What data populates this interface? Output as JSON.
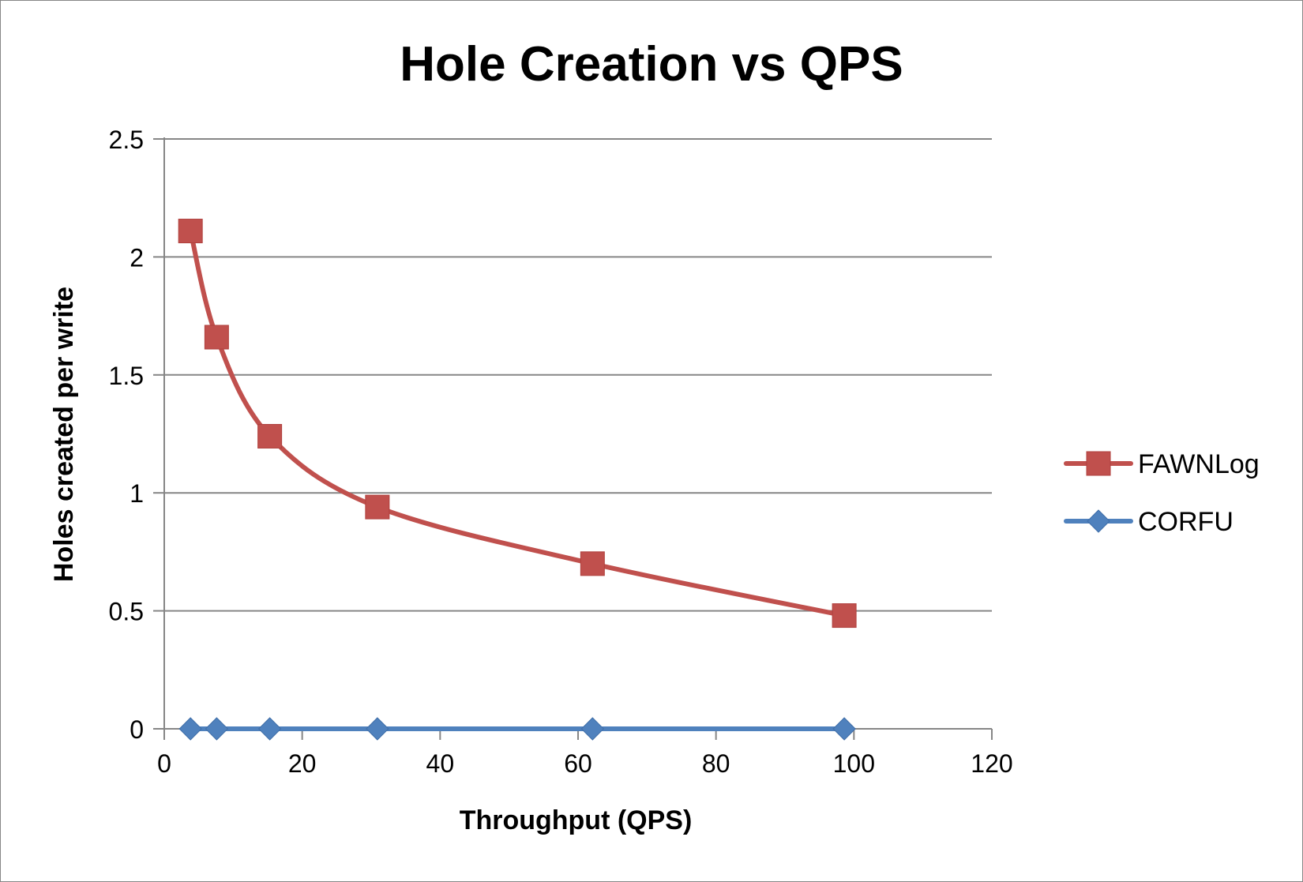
{
  "chart_data": {
    "type": "line",
    "title": "Hole Creation vs QPS",
    "xlabel": "Throughput (QPS)",
    "ylabel": "Holes created per write",
    "xlim": [
      0,
      120
    ],
    "ylim": [
      0,
      2.5
    ],
    "x_ticks": [
      "0",
      "20",
      "40",
      "60",
      "80",
      "100",
      "120"
    ],
    "y_ticks": [
      "0",
      "0.5",
      "1",
      "1.5",
      "2",
      "2.5"
    ],
    "grid": true,
    "legend_position": "right",
    "series": [
      {
        "name": "FAWNLog",
        "color": "#c0504d",
        "marker": "square",
        "smooth": true,
        "x": [
          3.8,
          7.6,
          15.3,
          30.9,
          62.1,
          98.6
        ],
        "y": [
          2.11,
          1.66,
          1.24,
          0.94,
          0.7,
          0.48
        ]
      },
      {
        "name": "CORFU",
        "color": "#4f81bd",
        "marker": "diamond",
        "smooth": false,
        "x": [
          3.8,
          7.6,
          15.3,
          30.9,
          62.1,
          98.6
        ],
        "y": [
          0,
          0,
          0,
          0,
          0,
          0
        ]
      }
    ]
  }
}
